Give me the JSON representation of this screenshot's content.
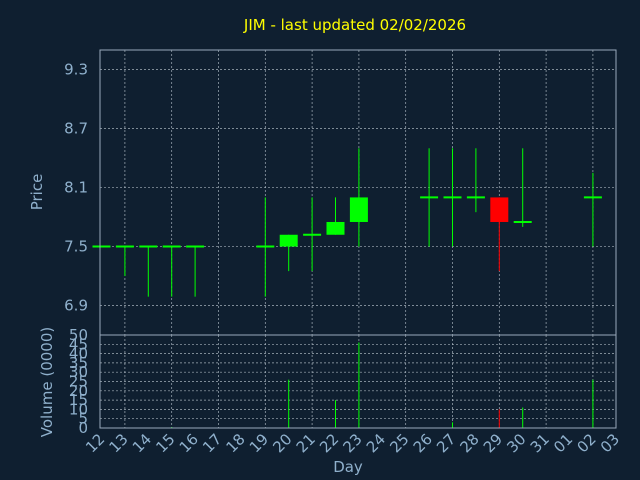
{
  "chart_data": [
    {
      "type": "candlestick",
      "title": "JIM - last updated 02/02/2026",
      "xlabel": "",
      "ylabel": "Price",
      "ylim": [
        6.6,
        9.5
      ],
      "y_ticks": [
        "6.9",
        "7.5",
        "8.1",
        "8.7",
        "9.3"
      ],
      "x_ticks": [
        "12",
        "13",
        "14",
        "15",
        "16",
        "17",
        "18",
        "19",
        "20",
        "21",
        "22",
        "23",
        "24",
        "25",
        "26",
        "27",
        "28",
        "29",
        "30",
        "31",
        "01",
        "02",
        "03"
      ],
      "colors": {
        "up": "#00ff00",
        "down": "#ff0000",
        "flat": "#00ff00"
      },
      "candles": [
        {
          "day": "12",
          "open": 7.5,
          "high": 7.5,
          "low": 7.5,
          "close": 7.5
        },
        {
          "day": "13",
          "open": 7.5,
          "high": 7.5,
          "low": 7.2,
          "close": 7.5
        },
        {
          "day": "14",
          "open": 7.5,
          "high": 7.5,
          "low": 6.99,
          "close": 7.5
        },
        {
          "day": "15",
          "open": 7.5,
          "high": 7.5,
          "low": 6.99,
          "close": 7.5
        },
        {
          "day": "16",
          "open": 7.5,
          "high": 7.5,
          "low": 6.99,
          "close": 7.5
        },
        {
          "day": "19",
          "open": 7.5,
          "high": 8.0,
          "low": 6.99,
          "close": 7.5
        },
        {
          "day": "20",
          "open": 7.5,
          "high": 7.62,
          "low": 7.25,
          "close": 7.62
        },
        {
          "day": "21",
          "open": 7.62,
          "high": 8.0,
          "low": 7.25,
          "close": 7.62
        },
        {
          "day": "22",
          "open": 7.62,
          "high": 8.0,
          "low": 7.62,
          "close": 7.75
        },
        {
          "day": "23",
          "open": 7.75,
          "high": 8.5,
          "low": 7.5,
          "close": 8.0
        },
        {
          "day": "26",
          "open": 8.0,
          "high": 8.5,
          "low": 7.5,
          "close": 8.0
        },
        {
          "day": "27",
          "open": 8.0,
          "high": 8.5,
          "low": 7.5,
          "close": 8.0
        },
        {
          "day": "28",
          "open": 8.0,
          "high": 8.5,
          "low": 7.85,
          "close": 8.0
        },
        {
          "day": "29",
          "open": 8.0,
          "high": 8.0,
          "low": 7.25,
          "close": 7.75
        },
        {
          "day": "30",
          "open": 7.75,
          "high": 8.5,
          "low": 7.7,
          "close": 7.75
        },
        {
          "day": "02",
          "open": 8.0,
          "high": 8.25,
          "low": 7.5,
          "close": 8.0
        }
      ]
    },
    {
      "type": "bar",
      "title": "",
      "xlabel": "Day",
      "ylabel": "Volume (0000)",
      "ylim": [
        0,
        50
      ],
      "y_ticks": [
        "0",
        "5",
        "10",
        "15",
        "20",
        "25",
        "30",
        "35",
        "40",
        "45",
        "50"
      ],
      "categories": [
        "12",
        "13",
        "14",
        "15",
        "16",
        "17",
        "18",
        "19",
        "20",
        "21",
        "22",
        "23",
        "24",
        "25",
        "26",
        "27",
        "28",
        "29",
        "30",
        "31",
        "01",
        "02",
        "03"
      ],
      "values": [
        0,
        0,
        0,
        0.5,
        0,
        0,
        0,
        0,
        26,
        0,
        15,
        46,
        0,
        0,
        0,
        3,
        0,
        10,
        11,
        0,
        0,
        26,
        0
      ],
      "bar_colors": [
        "#00ff00",
        "#00ff00",
        "#00ff00",
        "#00ff00",
        "#00ff00",
        "#00ff00",
        "#00ff00",
        "#00ff00",
        "#00ff00",
        "#00ff00",
        "#00ff00",
        "#00ff00",
        "#00ff00",
        "#00ff00",
        "#00ff00",
        "#00ff00",
        "#00ff00",
        "#ff0000",
        "#00ff00",
        "#00ff00",
        "#00ff00",
        "#00ff00",
        "#00ff00"
      ]
    }
  ]
}
